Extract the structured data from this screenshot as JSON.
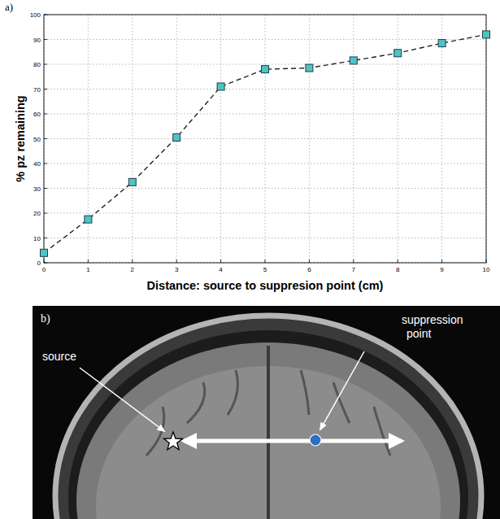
{
  "chart_data": {
    "type": "line",
    "panel_label": "a)",
    "x_label": "Distance: source to suppresion point (cm)",
    "y_label": "% pz remaining",
    "x": [
      0,
      1,
      2,
      3,
      4,
      5,
      6,
      7,
      8,
      9,
      10
    ],
    "values": [
      4,
      17.5,
      32.5,
      50.5,
      71,
      78,
      78.5,
      81.5,
      84.5,
      88.5,
      92
    ],
    "color": "#4fc3c7",
    "marker": "square",
    "line_style": "dashed",
    "xlim": [
      0,
      10
    ],
    "ylim": [
      0,
      100
    ],
    "xticks": [
      0,
      1,
      2,
      3,
      4,
      5,
      6,
      7,
      8,
      9,
      10
    ],
    "yticks": [
      0,
      10,
      20,
      30,
      40,
      50,
      60,
      70,
      80,
      90,
      100
    ],
    "grid": true
  },
  "image_panel": {
    "label": "b)",
    "annotations": [
      {
        "text": "source"
      },
      {
        "text": "suppression point"
      }
    ]
  }
}
